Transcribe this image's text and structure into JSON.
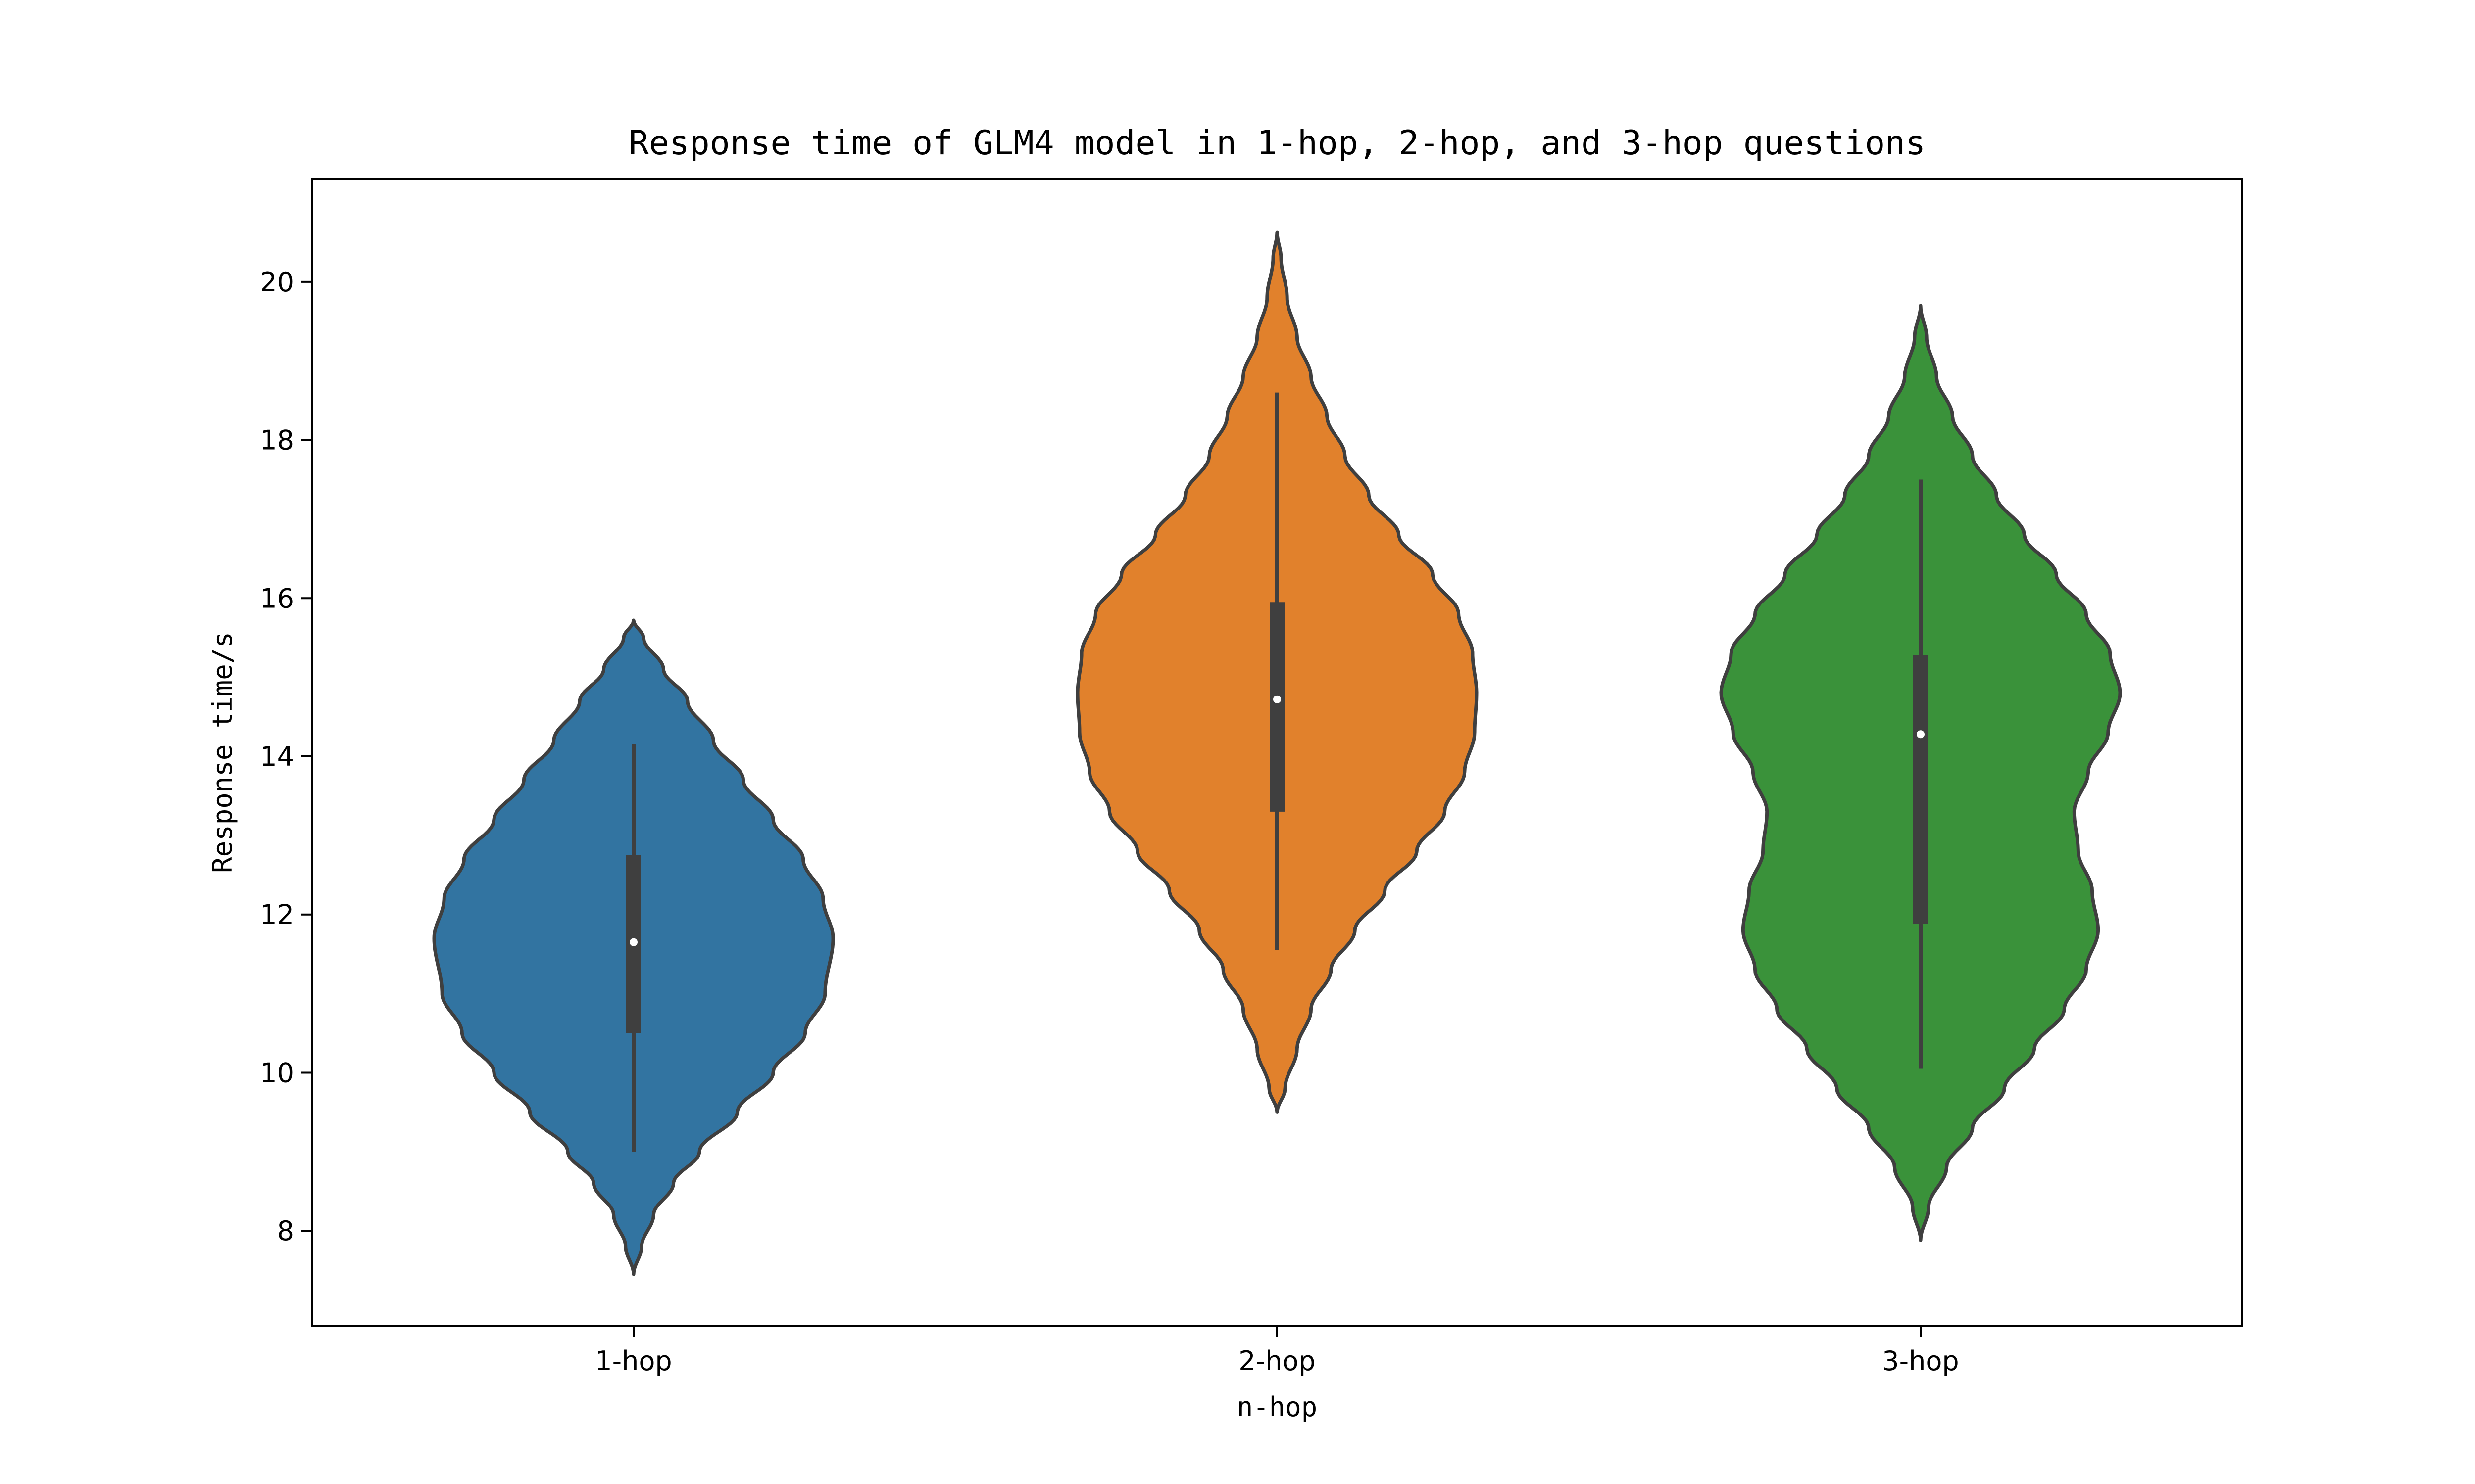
{
  "chart_data": {
    "type": "violin",
    "title": "Response time of GLM4 model in 1-hop, 2-hop, and 3-hop questions",
    "xlabel": "n-hop",
    "ylabel": "Response time/s",
    "categories": [
      "1-hop",
      "2-hop",
      "3-hop"
    ],
    "ylim": [
      6.8,
      21.3
    ],
    "yticks": [
      8,
      10,
      12,
      14,
      16,
      18,
      20
    ],
    "ytick_labels": [
      "8",
      "10",
      "12",
      "14",
      "16",
      "18",
      "20"
    ],
    "grid": false,
    "legend": "none",
    "violins": [
      {
        "category": "1-hop",
        "color": "#3274a1",
        "range": [
          7.45,
          15.72
        ],
        "median": 11.65,
        "q1": 10.5,
        "q3": 12.75,
        "whisker_low": 9.0,
        "whisker_high": 14.15,
        "density_profile": [
          [
            7.45,
            0.0
          ],
          [
            7.8,
            0.04
          ],
          [
            8.2,
            0.1
          ],
          [
            8.6,
            0.2
          ],
          [
            9.0,
            0.33
          ],
          [
            9.5,
            0.52
          ],
          [
            10.0,
            0.7
          ],
          [
            10.5,
            0.86
          ],
          [
            11.0,
            0.96
          ],
          [
            11.7,
            1.0
          ],
          [
            12.2,
            0.95
          ],
          [
            12.7,
            0.85
          ],
          [
            13.2,
            0.7
          ],
          [
            13.7,
            0.55
          ],
          [
            14.2,
            0.4
          ],
          [
            14.7,
            0.27
          ],
          [
            15.1,
            0.15
          ],
          [
            15.5,
            0.05
          ],
          [
            15.72,
            0.0
          ]
        ]
      },
      {
        "category": "2-hop",
        "color": "#e1812c",
        "range": [
          9.5,
          20.63
        ],
        "median": 14.72,
        "q1": 13.3,
        "q3": 15.95,
        "whisker_low": 11.55,
        "whisker_high": 18.6,
        "density_profile": [
          [
            9.5,
            0.0
          ],
          [
            9.8,
            0.04
          ],
          [
            10.3,
            0.1
          ],
          [
            10.8,
            0.17
          ],
          [
            11.3,
            0.27
          ],
          [
            11.8,
            0.39
          ],
          [
            12.3,
            0.54
          ],
          [
            12.8,
            0.7
          ],
          [
            13.3,
            0.84
          ],
          [
            13.8,
            0.94
          ],
          [
            14.3,
            0.99
          ],
          [
            14.8,
            1.0
          ],
          [
            15.3,
            0.98
          ],
          [
            15.8,
            0.91
          ],
          [
            16.3,
            0.78
          ],
          [
            16.8,
            0.61
          ],
          [
            17.3,
            0.46
          ],
          [
            17.8,
            0.34
          ],
          [
            18.3,
            0.25
          ],
          [
            18.8,
            0.17
          ],
          [
            19.3,
            0.1
          ],
          [
            19.8,
            0.05
          ],
          [
            20.3,
            0.02
          ],
          [
            20.63,
            0.0
          ]
        ]
      },
      {
        "category": "3-hop",
        "color": "#3a923a",
        "range": [
          7.88,
          19.7
        ],
        "median": 14.28,
        "q1": 11.88,
        "q3": 15.28,
        "whisker_low": 10.05,
        "whisker_high": 17.5,
        "density_profile": [
          [
            7.88,
            0.0
          ],
          [
            8.3,
            0.04
          ],
          [
            8.8,
            0.13
          ],
          [
            9.3,
            0.26
          ],
          [
            9.8,
            0.42
          ],
          [
            10.3,
            0.57
          ],
          [
            10.8,
            0.72
          ],
          [
            11.3,
            0.83
          ],
          [
            11.8,
            0.89
          ],
          [
            12.3,
            0.86
          ],
          [
            12.8,
            0.79
          ],
          [
            13.3,
            0.77
          ],
          [
            13.8,
            0.84
          ],
          [
            14.3,
            0.94
          ],
          [
            14.8,
            1.0
          ],
          [
            15.3,
            0.95
          ],
          [
            15.8,
            0.83
          ],
          [
            16.3,
            0.68
          ],
          [
            16.8,
            0.52
          ],
          [
            17.3,
            0.38
          ],
          [
            17.8,
            0.26
          ],
          [
            18.3,
            0.16
          ],
          [
            18.8,
            0.08
          ],
          [
            19.3,
            0.03
          ],
          [
            19.7,
            0.0
          ]
        ]
      }
    ]
  }
}
